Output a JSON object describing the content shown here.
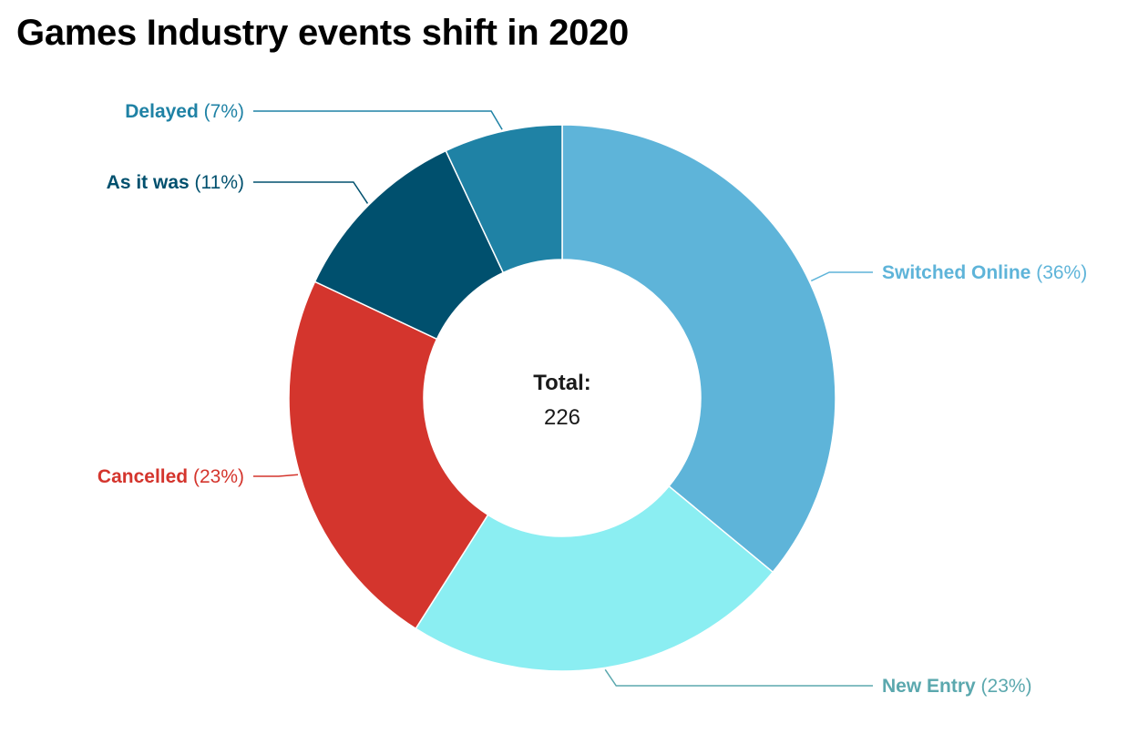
{
  "chart_data": {
    "type": "pie",
    "title": "Games Industry events shift in 2020",
    "center_label": "Total:",
    "center_value": "226",
    "slices": [
      {
        "label": "Switched Online",
        "pct_label": "(36%)",
        "value": 36,
        "color": "#5EB4D9",
        "label_color": "#5EB4D9"
      },
      {
        "label": "New Entry",
        "pct_label": "(23%)",
        "value": 23,
        "color": "#8BEEF2",
        "label_color": "#5BA8AE"
      },
      {
        "label": "Cancelled",
        "pct_label": "(23%)",
        "value": 23,
        "color": "#D4352D",
        "label_color": "#D4352D"
      },
      {
        "label": "As it was",
        "pct_label": "(11%)",
        "value": 11,
        "color": "#00506E",
        "label_color": "#00506E"
      },
      {
        "label": "Delayed",
        "pct_label": "(7%)",
        "value": 7,
        "color": "#1F82A5",
        "label_color": "#1F82A5"
      }
    ]
  }
}
